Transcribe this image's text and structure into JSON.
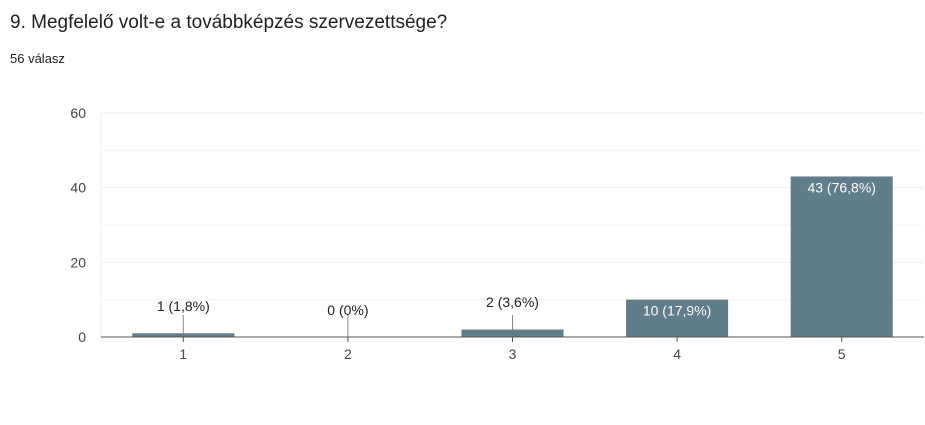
{
  "question": {
    "title": "9. Megfelelő volt-e a továbbképzés szervezettsége?",
    "responses": "56 válasz"
  },
  "chart_data": {
    "type": "bar",
    "categories": [
      "1",
      "2",
      "3",
      "4",
      "5"
    ],
    "values": [
      1,
      0,
      2,
      10,
      43
    ],
    "data_labels": [
      "1 (1,8%)",
      "0 (0%)",
      "2 (3,6%)",
      "10 (17,9%)",
      "43 (76,8%)"
    ],
    "ylim": [
      0,
      60
    ],
    "yticks": [
      0,
      20,
      40,
      60
    ],
    "grid": true,
    "title": "",
    "xlabel": "",
    "ylabel": "",
    "colors": {
      "bar": "#5f7d8a",
      "grid": "#eeeeee",
      "axis": "#555555",
      "tick_text": "#444444"
    }
  }
}
